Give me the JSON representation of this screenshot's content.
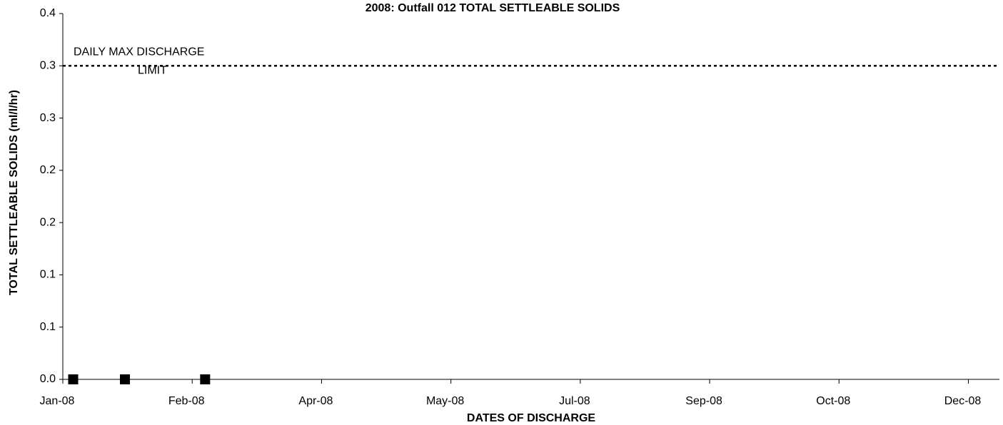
{
  "chart_data": {
    "type": "scatter",
    "title": "2008: Outfall 012 TOTAL SETTLEABLE SOLIDS",
    "x_label": "DATES OF DISCHARGE",
    "y_label": "TOTAL SETTLEABLE SOLIDS (ml/l/hr)",
    "series": [
      {
        "name": "TOTAL SETTLEABLE SOLIDS",
        "color": "#000000",
        "x": [
          4,
          24,
          55
        ],
        "values": [
          0,
          0,
          0
        ]
      }
    ],
    "limit": {
      "value": 0.3,
      "label": [
        "DAILY MAX DISCHARGE",
        "LIMIT"
      ]
    },
    "xlim": [
      0,
      362
    ],
    "xticks": [
      {
        "value": 0,
        "label": "Jan-08"
      },
      {
        "value": 50,
        "label": "Feb-08"
      },
      {
        "value": 100,
        "label": "Apr-08"
      },
      {
        "value": 150,
        "label": "May-08"
      },
      {
        "value": 200,
        "label": "Jul-08"
      },
      {
        "value": 250,
        "label": "Sep-08"
      },
      {
        "value": 300,
        "label": "Oct-08"
      },
      {
        "value": 350,
        "label": "Dec-08"
      }
    ],
    "ylim": [
      0,
      0.35
    ],
    "yticks": [
      {
        "value": 0,
        "label": "0.0"
      },
      {
        "value": 0.05,
        "label": "0.1"
      },
      {
        "value": 0.1,
        "label": "0.1"
      },
      {
        "value": 0.15,
        "label": "0.2"
      },
      {
        "value": 0.2,
        "label": "0.2"
      },
      {
        "value": 0.25,
        "label": "0.3"
      },
      {
        "value": 0.3,
        "label": "0.3"
      },
      {
        "value": 0.35,
        "label": "0.4"
      }
    ],
    "grid": false
  }
}
